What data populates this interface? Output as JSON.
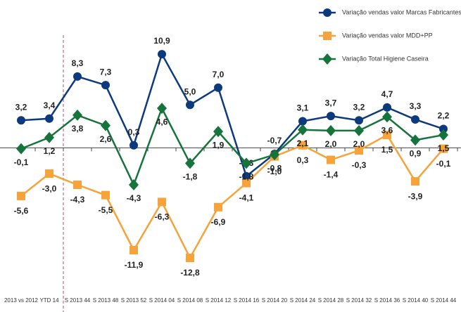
{
  "chart_data": {
    "type": "line",
    "categories": [
      "2013 vs 2012",
      "YTD 14",
      "S 2013 44",
      "S 2013 48",
      "S 2013 52",
      "S 2014 04",
      "S 2014 08",
      "S 2014 12",
      "S 2014 16",
      "S 2014 20",
      "S 2014 24",
      "S 2014 28",
      "S 2014 32",
      "S 2014 36",
      "S 2014 40",
      "S 2014 44"
    ],
    "series": [
      {
        "name": "Variação vendas valor Marcas Fabricantes",
        "color": "#0d3a7d",
        "marker": "circle",
        "values": [
          3.2,
          3.4,
          8.3,
          7.3,
          0.3,
          10.9,
          5.0,
          7.0,
          -3.3,
          -0.7,
          3.1,
          3.7,
          3.2,
          4.7,
          3.3,
          2.2
        ],
        "value_labels": [
          "3,2",
          "3,4",
          "8,3",
          "7,3",
          "0,3",
          "10,9",
          "5,0",
          "7,0",
          "-3,3",
          "-0,7",
          "3,1",
          "3,7",
          "3,2",
          "4,7",
          "3,3",
          "2,2"
        ]
      },
      {
        "name": "Variação vendas valor MDD+PP",
        "color": "#f5a33a",
        "marker": "square",
        "values": [
          -5.6,
          -3.0,
          -4.3,
          -5.5,
          -11.9,
          -6.3,
          -12.8,
          -6.9,
          -4.1,
          -1.0,
          0.3,
          -1.4,
          -0.3,
          1.5,
          -3.9,
          -0.1
        ],
        "value_labels": [
          "-5,6",
          "-3,0",
          "-4,3",
          "-5,5",
          "-11,9",
          "-6,3",
          "-12,8",
          "-6,9",
          "-4,1",
          "-1,0",
          "0,3",
          "-1,4",
          "-0,3",
          "1,5",
          "-3,9",
          "-0,1"
        ]
      },
      {
        "name": "Variação Total Higiene Caseira",
        "color": "#17733c",
        "marker": "diamond",
        "values": [
          -0.1,
          1.2,
          3.8,
          2.6,
          -4.3,
          4.6,
          -1.8,
          1.9,
          -1.8,
          -0.8,
          2.1,
          2.0,
          2.0,
          3.6,
          0.9,
          1.5
        ],
        "value_labels": [
          "-0,1",
          "1,2",
          "3,8",
          "2,6",
          "-4,3",
          "4,6",
          "-1,8",
          "1,9",
          "-1,8",
          "-0,8",
          "2,1",
          "2,0",
          "2,0",
          "3,6",
          "0,9",
          "1,5"
        ]
      }
    ],
    "ylim": [
      -15.5,
      17.2
    ],
    "legend": "top-right"
  }
}
